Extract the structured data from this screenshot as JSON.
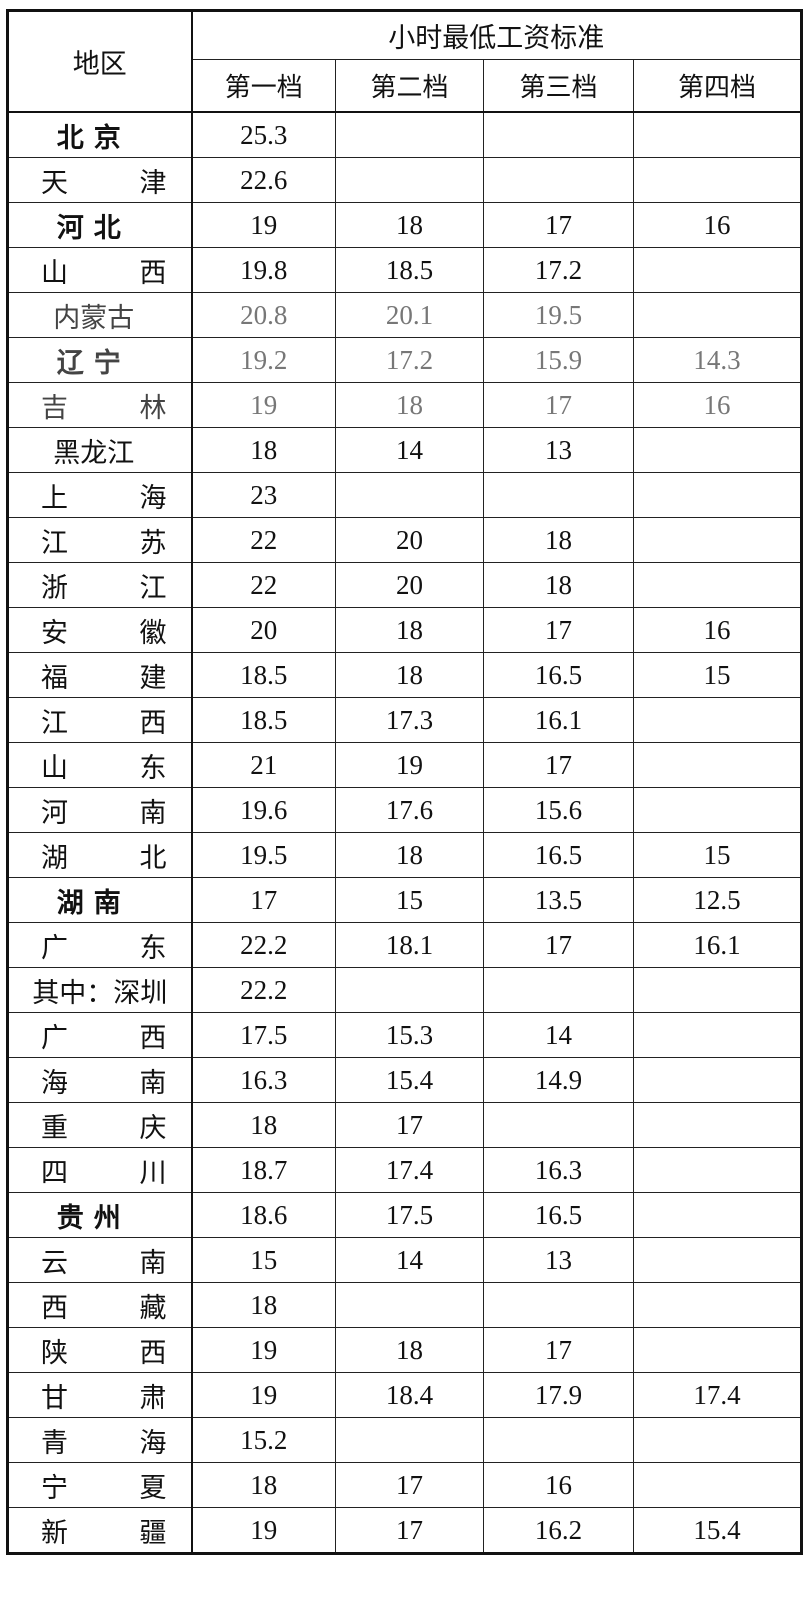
{
  "header": {
    "region": "地区",
    "group": "小时最低工资标准",
    "tiers": [
      "第一档",
      "第二档",
      "第三档",
      "第四档"
    ]
  },
  "rows": [
    {
      "name": "北京",
      "style": "bold",
      "values": [
        "25.3",
        "",
        "",
        ""
      ]
    },
    {
      "name": "天津",
      "style": "spread",
      "values": [
        "22.6",
        "",
        "",
        ""
      ]
    },
    {
      "name": "河北",
      "style": "bold",
      "values": [
        "19",
        "18",
        "17",
        "16"
      ]
    },
    {
      "name": "山西",
      "style": "spread",
      "values": [
        "19.8",
        "18.5",
        "17.2",
        ""
      ]
    },
    {
      "name": "内蒙古",
      "style": "center",
      "grey": true,
      "values": [
        "20.8",
        "20.1",
        "19.5",
        ""
      ]
    },
    {
      "name": "辽宁",
      "style": "bold",
      "grey": true,
      "values": [
        "19.2",
        "17.2",
        "15.9",
        "14.3"
      ]
    },
    {
      "name": "吉林",
      "style": "spread",
      "grey": true,
      "values": [
        "19",
        "18",
        "17",
        "16"
      ]
    },
    {
      "name": "黑龙江",
      "style": "center",
      "values": [
        "18",
        "14",
        "13",
        ""
      ]
    },
    {
      "name": "上海",
      "style": "spread",
      "values": [
        "23",
        "",
        "",
        ""
      ]
    },
    {
      "name": "江苏",
      "style": "spread",
      "values": [
        "22",
        "20",
        "18",
        ""
      ]
    },
    {
      "name": "浙江",
      "style": "spread",
      "values": [
        "22",
        "20",
        "18",
        ""
      ]
    },
    {
      "name": "安徽",
      "style": "spread",
      "values": [
        "20",
        "18",
        "17",
        "16"
      ]
    },
    {
      "name": "福建",
      "style": "spread",
      "values": [
        "18.5",
        "18",
        "16.5",
        "15"
      ]
    },
    {
      "name": "江西",
      "style": "spread",
      "values": [
        "18.5",
        "17.3",
        "16.1",
        ""
      ]
    },
    {
      "name": "山东",
      "style": "spread",
      "values": [
        "21",
        "19",
        "17",
        ""
      ]
    },
    {
      "name": "河南",
      "style": "spread",
      "values": [
        "19.6",
        "17.6",
        "15.6",
        ""
      ]
    },
    {
      "name": "湖北",
      "style": "spread",
      "values": [
        "19.5",
        "18",
        "16.5",
        "15"
      ]
    },
    {
      "name": "湖南",
      "style": "bold",
      "values": [
        "17",
        "15",
        "13.5",
        "12.5"
      ]
    },
    {
      "name": "广东",
      "style": "spread",
      "values": [
        "22.2",
        "18.1",
        "17",
        "16.1"
      ]
    },
    {
      "name": "其中：深圳",
      "style": "full",
      "values": [
        "22.2",
        "",
        "",
        ""
      ]
    },
    {
      "name": "广西",
      "style": "spread",
      "values": [
        "17.5",
        "15.3",
        "14",
        ""
      ]
    },
    {
      "name": "海南",
      "style": "spread",
      "values": [
        "16.3",
        "15.4",
        "14.9",
        ""
      ]
    },
    {
      "name": "重庆",
      "style": "spread",
      "values": [
        "18",
        "17",
        "",
        ""
      ]
    },
    {
      "name": "四川",
      "style": "spread",
      "values": [
        "18.7",
        "17.4",
        "16.3",
        ""
      ]
    },
    {
      "name": "贵州",
      "style": "bold",
      "values": [
        "18.6",
        "17.5",
        "16.5",
        ""
      ]
    },
    {
      "name": "云南",
      "style": "spread",
      "values": [
        "15",
        "14",
        "13",
        ""
      ]
    },
    {
      "name": "西藏",
      "style": "spread",
      "values": [
        "18",
        "",
        "",
        ""
      ]
    },
    {
      "name": "陕西",
      "style": "spread",
      "values": [
        "19",
        "18",
        "17",
        ""
      ]
    },
    {
      "name": "甘肃",
      "style": "spread",
      "values": [
        "19",
        "18.4",
        "17.9",
        "17.4"
      ]
    },
    {
      "name": "青海",
      "style": "spread",
      "values": [
        "15.2",
        "",
        "",
        ""
      ]
    },
    {
      "name": "宁夏",
      "style": "spread",
      "values": [
        "18",
        "17",
        "16",
        ""
      ]
    },
    {
      "name": "新疆",
      "style": "spread",
      "values": [
        "19",
        "17",
        "16.2",
        "15.4"
      ]
    }
  ]
}
